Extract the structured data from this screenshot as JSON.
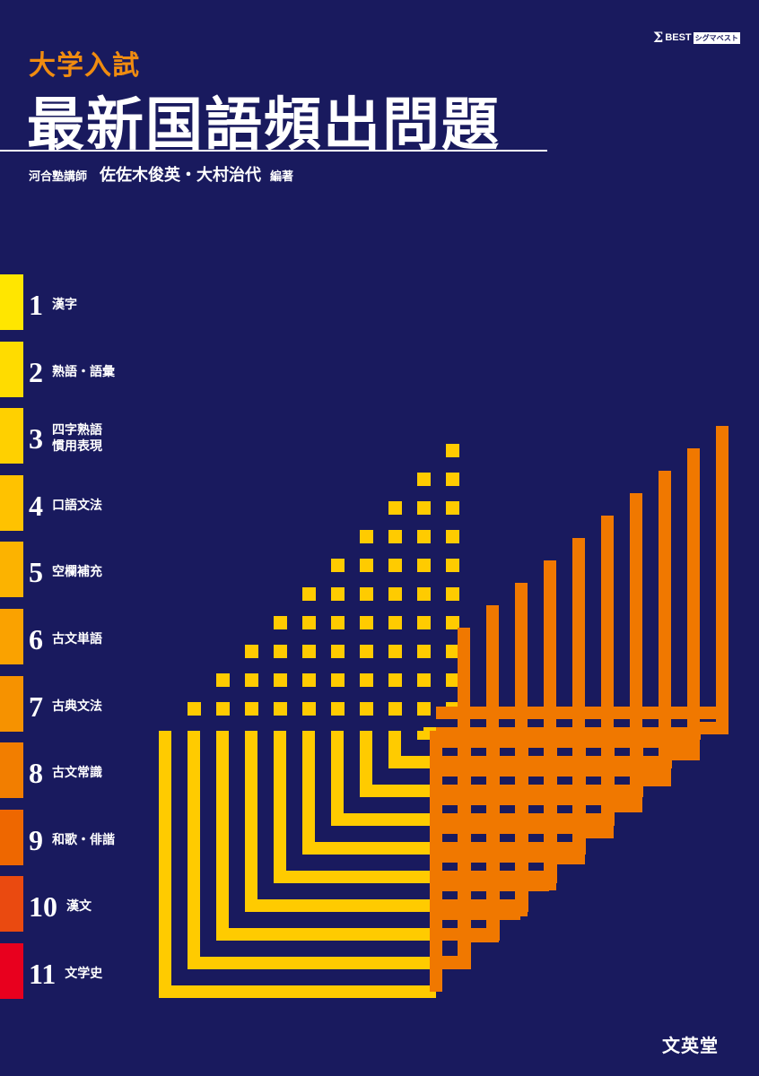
{
  "logo": {
    "sigma": "Σ",
    "best": "BEST",
    "kana": "シグマベスト"
  },
  "cover": {
    "subtitle": "大学入試",
    "title": "最新国語頻出問題",
    "affiliation": "河合塾講師",
    "authors": "佐佐木俊英・大村治代",
    "role": "編著",
    "publisher": "文英堂"
  },
  "chapters": [
    {
      "num": "1",
      "lines": [
        "漢字"
      ],
      "color": "#ffe600"
    },
    {
      "num": "2",
      "lines": [
        "熟語・語彙"
      ],
      "color": "#ffdc00"
    },
    {
      "num": "3",
      "lines": [
        "四字熟語",
        "慣用表現"
      ],
      "color": "#ffd000"
    },
    {
      "num": "4",
      "lines": [
        "口語文法"
      ],
      "color": "#ffc200"
    },
    {
      "num": "5",
      "lines": [
        "空欄補充"
      ],
      "color": "#fcb300"
    },
    {
      "num": "6",
      "lines": [
        "古文単語"
      ],
      "color": "#faa200"
    },
    {
      "num": "7",
      "lines": [
        "古典文法"
      ],
      "color": "#f69200"
    },
    {
      "num": "8",
      "lines": [
        "古文常識"
      ],
      "color": "#f27e00"
    },
    {
      "num": "9",
      "lines": [
        "和歌・俳諧"
      ],
      "color": "#ee6700"
    },
    {
      "num": "10",
      "lines": [
        "漢文"
      ],
      "color": "#ea4a10"
    },
    {
      "num": "11",
      "lines": [
        "文学史"
      ],
      "color": "#e8001e"
    }
  ],
  "colors": {
    "background": "#191a5e",
    "yellow": "#ffcb00",
    "orange": "#f07800",
    "accent": "#f08c10"
  }
}
